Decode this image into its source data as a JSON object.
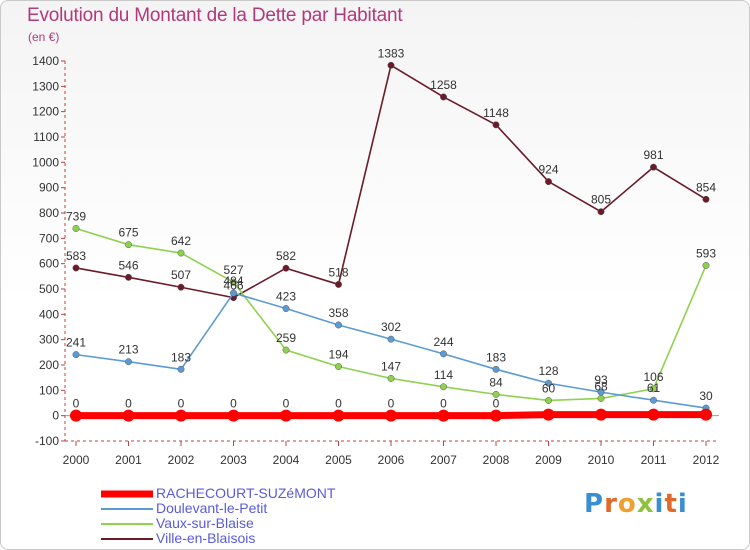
{
  "title": "Evolution du Montant de la Dette par Habitant",
  "unit": "(en €)",
  "logo_text": "Proxiti",
  "chart_data": {
    "type": "line",
    "categories": [
      "2000",
      "2001",
      "2002",
      "2003",
      "2004",
      "2005",
      "2006",
      "2007",
      "2008",
      "2009",
      "2010",
      "2011",
      "2012"
    ],
    "ylim": [
      -100,
      1400
    ],
    "yticks": [
      -100,
      0,
      100,
      200,
      300,
      400,
      500,
      600,
      700,
      800,
      900,
      1000,
      1100,
      1200,
      1300,
      1400
    ],
    "grid": false,
    "legend_position": "bottom-left",
    "series": [
      {
        "name": "RACHECOURT-SUZéMONT",
        "color": "#ff0000",
        "values": [
          0,
          0,
          0,
          0,
          0,
          0,
          0,
          0,
          0,
          4,
          4,
          4,
          4
        ],
        "labels": [
          "0",
          "0",
          "0",
          "0",
          "0",
          "0",
          "0",
          "0",
          "0",
          "",
          "",
          "",
          ""
        ]
      },
      {
        "name": "Doulevant-le-Petit",
        "color": "#5b9bd5",
        "values": [
          241,
          213,
          183,
          484,
          423,
          358,
          302,
          244,
          183,
          128,
          93,
          61,
          30
        ],
        "labels": [
          "241",
          "213",
          "183",
          "484",
          "423",
          "358",
          "302",
          "244",
          "183",
          "128",
          "93",
          "61",
          "30"
        ]
      },
      {
        "name": "Vaux-sur-Blaise",
        "color": "#8fd14f",
        "values": [
          739,
          675,
          642,
          527,
          259,
          194,
          147,
          114,
          84,
          60,
          68,
          106,
          593
        ],
        "labels": [
          "739",
          "675",
          "642",
          "527",
          "259",
          "194",
          "147",
          "114",
          "84",
          "60",
          "68",
          "106",
          "593"
        ]
      },
      {
        "name": "Ville-en-Blaisois",
        "color": "#6b1a2a",
        "values": [
          583,
          546,
          507,
          466,
          582,
          518,
          1383,
          1258,
          1148,
          924,
          805,
          981,
          854
        ],
        "labels": [
          "583",
          "546",
          "507",
          "466",
          "582",
          "518",
          "1383",
          "1258",
          "1148",
          "924",
          "805",
          "981",
          "854"
        ]
      }
    ]
  }
}
